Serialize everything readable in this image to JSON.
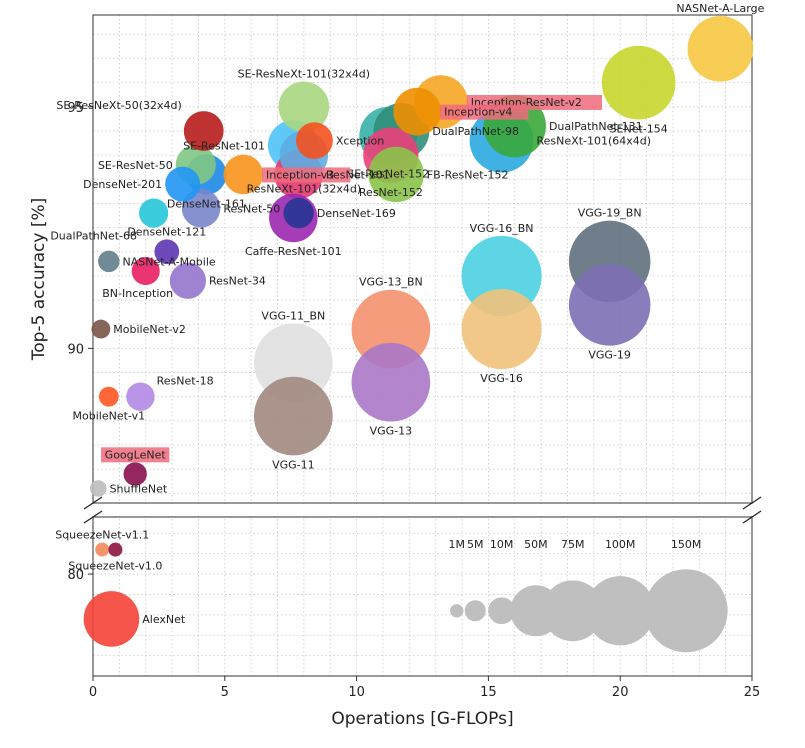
{
  "chart_data": {
    "type": "scatter",
    "title": "",
    "xlabel": "Operations [G-FLOPs]",
    "ylabel": "Top-5 accuracy [%]",
    "xlim": [
      0,
      25
    ],
    "ylim_upper": [
      86.8,
      96.9
    ],
    "ylim_lower": [
      77.5,
      81.4
    ],
    "x_ticks": [
      0,
      5,
      10,
      15,
      20,
      25
    ],
    "y_ticks": [
      80,
      90,
      95
    ],
    "grid": true,
    "broken_y_axis": true,
    "bubble_size_encodes": "Parameters [M]",
    "points": [
      {
        "name": "NASNet-A-Large",
        "x": 23.8,
        "y": 96.2,
        "params": 88.9,
        "color": "#f7c843",
        "label_pos": "top"
      },
      {
        "name": "SENet-154",
        "x": 20.7,
        "y": 95.5,
        "params": 115.1,
        "color": "#c8d62e",
        "label_pos": "bottom"
      },
      {
        "name": "Inception-ResNet-v2",
        "x": 13.2,
        "y": 95.1,
        "params": 55.8,
        "color": "#f5a623",
        "label_pos": "right",
        "highlight": true
      },
      {
        "name": "Inception-v4",
        "x": 12.3,
        "y": 94.9,
        "params": 42.7,
        "color": "#f08f00",
        "label_pos": "right",
        "highlight": true
      },
      {
        "name": "DualPathNet-131",
        "x": 16.0,
        "y": 94.6,
        "params": 79.3,
        "color": "#3aa93a",
        "label_pos": "right"
      },
      {
        "name": "DualPathNet-98",
        "x": 11.7,
        "y": 94.5,
        "params": 61.6,
        "color": "#2f8f7a",
        "label_pos": "right"
      },
      {
        "name": "SE-ResNeXt-101(32x4d)",
        "x": 8.0,
        "y": 95.0,
        "params": 49.0,
        "color": "#a8d67f",
        "label_pos": "top"
      },
      {
        "name": "SE-ResNeXt-50(32x4d)",
        "x": 4.2,
        "y": 94.5,
        "params": 27.6,
        "color": "#b71c1c",
        "label_pos": "left-top"
      },
      {
        "name": "SE-ResNet-152",
        "x": 11.2,
        "y": 94.4,
        "params": 66.8,
        "color": "#3aafa9",
        "label_pos": "bottom"
      },
      {
        "name": "ResNeXt-101(64x4d)",
        "x": 15.5,
        "y": 94.3,
        "params": 83.6,
        "color": "#2aa8e0",
        "label_pos": "right"
      },
      {
        "name": "Xception",
        "x": 8.4,
        "y": 94.3,
        "params": 22.9,
        "color": "#f4511e",
        "label_pos": "right"
      },
      {
        "name": "SE-ResNet-101",
        "x": 7.6,
        "y": 94.2,
        "params": 49.3,
        "color": "#4fc3f7",
        "label_pos": "left"
      },
      {
        "name": "ResNeXt-101(32x4d)",
        "x": 8.0,
        "y": 94.0,
        "params": 44.2,
        "color": "#5dade2",
        "label_pos": "bottom"
      },
      {
        "name": "ResNet-152",
        "x": 11.3,
        "y": 94.0,
        "params": 60.2,
        "color": "#ec407a",
        "label_pos": "bottom"
      },
      {
        "name": "SE-ResNet-50",
        "x": 3.9,
        "y": 93.8,
        "params": 28.1,
        "color": "#81c784",
        "label_pos": "left"
      },
      {
        "name": "Inception-v3",
        "x": 5.7,
        "y": 93.6,
        "params": 27.2,
        "color": "#f7941d",
        "label_pos": "right",
        "highlight": true
      },
      {
        "name": "DenseNet-161",
        "x": 4.3,
        "y": 93.6,
        "params": 28.7,
        "color": "#1e88e5",
        "label_pos": "bottom"
      },
      {
        "name": "ResNet-101",
        "x": 7.8,
        "y": 93.6,
        "params": 44.5,
        "color": "#e53970",
        "label_pos": "right"
      },
      {
        "name": "FB-ResNet-152",
        "x": 11.5,
        "y": 93.6,
        "params": 60.2,
        "color": "#8bc34a",
        "label_pos": "right"
      },
      {
        "name": "DenseNet-201",
        "x": 3.4,
        "y": 93.4,
        "params": 20.0,
        "color": "#2196f3",
        "label_pos": "left"
      },
      {
        "name": "ResNet-50",
        "x": 4.1,
        "y": 92.9,
        "params": 25.6,
        "color": "#7986cb",
        "label_pos": "right"
      },
      {
        "name": "DenseNet-169",
        "x": 7.8,
        "y": 92.8,
        "params": 14.1,
        "color": "#283593",
        "label_pos": "right"
      },
      {
        "name": "Caffe-ResNet-101",
        "x": 7.6,
        "y": 92.7,
        "params": 44.5,
        "color": "#9c27b0",
        "label_pos": "bottom"
      },
      {
        "name": "DualPathNet-68",
        "x": 2.3,
        "y": 92.8,
        "params": 12.6,
        "color": "#26c6da",
        "label_pos": "left-bottom"
      },
      {
        "name": "DenseNet-121",
        "x": 2.8,
        "y": 92.0,
        "params": 8.0,
        "color": "#5e35b1",
        "label_pos": "top"
      },
      {
        "name": "NASNet-A-Mobile",
        "x": 0.6,
        "y": 91.8,
        "params": 5.3,
        "color": "#607d8b",
        "label_pos": "right"
      },
      {
        "name": "BN-Inception",
        "x": 2.0,
        "y": 91.6,
        "params": 11.3,
        "color": "#e91e63",
        "label_pos": "bottom-left"
      },
      {
        "name": "ResNet-34",
        "x": 3.6,
        "y": 91.4,
        "params": 21.8,
        "color": "#9575cd",
        "label_pos": "right"
      },
      {
        "name": "MobileNet-v2",
        "x": 0.3,
        "y": 90.4,
        "params": 3.5,
        "color": "#795548",
        "label_pos": "right"
      },
      {
        "name": "VGG-19_BN",
        "x": 19.6,
        "y": 91.8,
        "params": 143.7,
        "color": "#607080",
        "label_pos": "top"
      },
      {
        "name": "VGG-19",
        "x": 19.6,
        "y": 90.9,
        "params": 143.7,
        "color": "#7e6fb5",
        "label_pos": "bottom"
      },
      {
        "name": "VGG-16_BN",
        "x": 15.5,
        "y": 91.5,
        "params": 138.4,
        "color": "#4dd0e1",
        "label_pos": "top"
      },
      {
        "name": "VGG-16",
        "x": 15.5,
        "y": 90.4,
        "params": 138.4,
        "color": "#f0c27b",
        "label_pos": "bottom"
      },
      {
        "name": "VGG-13_BN",
        "x": 11.3,
        "y": 90.4,
        "params": 133.0,
        "color": "#f4916e",
        "label_pos": "top"
      },
      {
        "name": "VGG-13",
        "x": 11.3,
        "y": 89.3,
        "params": 133.0,
        "color": "#ab78c8",
        "label_pos": "bottom"
      },
      {
        "name": "VGG-11_BN",
        "x": 7.6,
        "y": 89.7,
        "params": 132.9,
        "color": "#e0e0e0",
        "label_pos": "top"
      },
      {
        "name": "VGG-11",
        "x": 7.6,
        "y": 88.6,
        "params": 132.9,
        "color": "#a1887f",
        "label_pos": "bottom"
      },
      {
        "name": "ResNet-18",
        "x": 1.8,
        "y": 89.0,
        "params": 11.7,
        "color": "#b388e3",
        "label_pos": "right-top"
      },
      {
        "name": "MobileNet-v1",
        "x": 0.6,
        "y": 89.0,
        "params": 4.2,
        "color": "#ff5722",
        "label_pos": "bottom"
      },
      {
        "name": "GoogLeNet",
        "x": 1.6,
        "y": 87.4,
        "params": 6.8,
        "color": "#880e4f",
        "label_pos": "top",
        "highlight": true
      },
      {
        "name": "ShuffleNet",
        "x": 0.2,
        "y": 87.1,
        "params": 2.3,
        "color": "#bdbdbd",
        "label_pos": "right"
      },
      {
        "name": "SqueezeNet-v1.1",
        "x": 0.35,
        "y": 80.6,
        "params": 1.2,
        "color": "#f48a5c",
        "label_pos": "top"
      },
      {
        "name": "SqueezeNet-v1.0",
        "x": 0.85,
        "y": 80.6,
        "params": 1.2,
        "color": "#8e1440",
        "label_pos": "bottom"
      },
      {
        "name": "AlexNet",
        "x": 0.7,
        "y": 78.9,
        "params": 61.0,
        "color": "#f44336",
        "label_pos": "right"
      }
    ],
    "size_legend": {
      "color": "#bfbfbf",
      "y": 79.1,
      "items": [
        {
          "label": "1M",
          "params": 1,
          "x": 13.8
        },
        {
          "label": "5M",
          "params": 5,
          "x": 14.5
        },
        {
          "label": "10M",
          "params": 10,
          "x": 15.5
        },
        {
          "label": "50M",
          "params": 50,
          "x": 16.8
        },
        {
          "label": "75M",
          "params": 75,
          "x": 18.2
        },
        {
          "label": "100M",
          "params": 100,
          "x": 20.0
        },
        {
          "label": "150M",
          "params": 150,
          "x": 22.5
        }
      ]
    }
  }
}
